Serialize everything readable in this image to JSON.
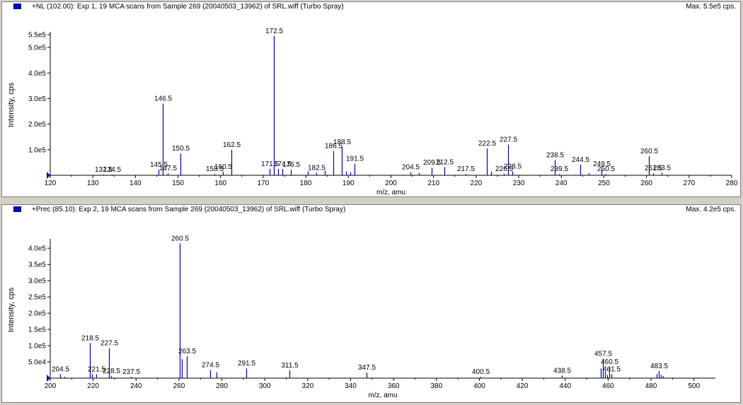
{
  "panels": [
    {
      "title": "+NL (102.00): Exp 1, 19 MCA scans from Sample 269 (20040503_13962) of SRL.wiff (Turbo Spray)",
      "max_label": "Max. 5.5e5 cps."
    },
    {
      "title": "+Prec (85.10): Exp 2, 19 MCA scans from Sample 269 (20040503_13962) of SRL.wiff (Turbo Spray)",
      "max_label": "Max. 4.2e5 cps."
    }
  ],
  "colors": {
    "trace": "#0000b4",
    "axis": "#000000",
    "background": "#ffffff"
  },
  "chart_data": [
    {
      "type": "bar",
      "xlabel": "m/z, amu",
      "ylabel": "Intensity, cps",
      "xlim": [
        120,
        280
      ],
      "ylim": [
        0,
        550000
      ],
      "xticks": [
        "120",
        "130",
        "140",
        "150",
        "160",
        "170",
        "180",
        "190",
        "200",
        "210",
        "220",
        "230",
        "240",
        "250",
        "260",
        "270",
        "280"
      ],
      "yticks": [
        {
          "label": "1.0e5",
          "v": 100000
        },
        {
          "label": "2.0e5",
          "v": 200000
        },
        {
          "label": "3.0e5",
          "v": 300000
        },
        {
          "label": "4.0e5",
          "v": 400000
        },
        {
          "label": "5.0e5",
          "v": 500000
        },
        {
          "label": "5.5e5",
          "v": 550000
        }
      ],
      "peaks": [
        {
          "x": 132.5,
          "y": 3000,
          "label": "132.5"
        },
        {
          "x": 134.5,
          "y": 3000,
          "label": "134.5"
        },
        {
          "x": 145.5,
          "y": 22000,
          "label": "145.5"
        },
        {
          "x": 146.5,
          "y": 280000,
          "label": "146.5"
        },
        {
          "x": 147.5,
          "y": 8000,
          "label": "147.5"
        },
        {
          "x": 150.5,
          "y": 85000,
          "label": "150.5"
        },
        {
          "x": 158.5,
          "y": 5000,
          "label": "158.5"
        },
        {
          "x": 160.5,
          "y": 14000,
          "label": "160.5"
        },
        {
          "x": 162.5,
          "y": 100000,
          "label": "162.5"
        },
        {
          "x": 171.5,
          "y": 25000,
          "label": "171.5"
        },
        {
          "x": 172.5,
          "y": 545000,
          "label": "172.5"
        },
        {
          "x": 173.5,
          "y": 25000
        },
        {
          "x": 174.5,
          "y": 25000,
          "label": "174.5"
        },
        {
          "x": 176.5,
          "y": 22000,
          "label": "176.5"
        },
        {
          "x": 180.5,
          "y": 15000
        },
        {
          "x": 182.5,
          "y": 10000,
          "label": "182.5"
        },
        {
          "x": 184.5,
          "y": 18000
        },
        {
          "x": 186.5,
          "y": 95000,
          "label": "186.5"
        },
        {
          "x": 188.5,
          "y": 110000,
          "label": "188.5"
        },
        {
          "x": 189.5,
          "y": 15000
        },
        {
          "x": 190.5,
          "y": 12000
        },
        {
          "x": 191.5,
          "y": 45000,
          "label": "191.5"
        },
        {
          "x": 204.5,
          "y": 12000,
          "label": "204.5"
        },
        {
          "x": 206.5,
          "y": 10000
        },
        {
          "x": 209.5,
          "y": 30000,
          "label": "209.5"
        },
        {
          "x": 212.5,
          "y": 32000,
          "label": "212.5"
        },
        {
          "x": 217.5,
          "y": 5000,
          "label": "217.5"
        },
        {
          "x": 222.5,
          "y": 105000,
          "label": "222.5"
        },
        {
          "x": 223.5,
          "y": 15000
        },
        {
          "x": 226.5,
          "y": 6000,
          "label": "226.5"
        },
        {
          "x": 227.5,
          "y": 120000,
          "label": "227.5"
        },
        {
          "x": 228.5,
          "y": 15000,
          "label": "228.5"
        },
        {
          "x": 238.5,
          "y": 60000,
          "label": "238.5"
        },
        {
          "x": 239.5,
          "y": 5000,
          "label": "239.5"
        },
        {
          "x": 244.5,
          "y": 42000,
          "label": "244.5"
        },
        {
          "x": 246.5,
          "y": 8000
        },
        {
          "x": 249.5,
          "y": 25000,
          "label": "249.5"
        },
        {
          "x": 250.5,
          "y": 5000,
          "label": "250.5"
        },
        {
          "x": 260.5,
          "y": 75000,
          "label": "260.5"
        },
        {
          "x": 261.5,
          "y": 8000,
          "label": "261.5"
        },
        {
          "x": 263.5,
          "y": 10000,
          "label": "263.5"
        }
      ]
    },
    {
      "type": "bar",
      "xlabel": "m/z, amu",
      "ylabel": "Intensity, cps",
      "xlim": [
        200,
        510
      ],
      "ylim": [
        0,
        420000
      ],
      "xticks": [
        "200",
        "220",
        "240",
        "260",
        "280",
        "300",
        "320",
        "340",
        "360",
        "380",
        "400",
        "420",
        "440",
        "460",
        "480",
        "500"
      ],
      "yticks": [
        {
          "label": "5.0e4",
          "v": 50000
        },
        {
          "label": "1.0e5",
          "v": 100000
        },
        {
          "label": "1.5e5",
          "v": 150000
        },
        {
          "label": "2.0e5",
          "v": 200000
        },
        {
          "label": "2.5e5",
          "v": 250000
        },
        {
          "label": "3.0e5",
          "v": 300000
        },
        {
          "label": "3.5e5",
          "v": 350000
        },
        {
          "label": "4.0e5",
          "v": 400000
        }
      ],
      "peaks": [
        {
          "x": 204.5,
          "y": 12000,
          "label": "204.5"
        },
        {
          "x": 206.5,
          "y": 4000
        },
        {
          "x": 218.5,
          "y": 108000,
          "label": "218.5"
        },
        {
          "x": 219.5,
          "y": 12000
        },
        {
          "x": 221.5,
          "y": 12000,
          "label": "221.5"
        },
        {
          "x": 227.5,
          "y": 92000,
          "label": "227.5"
        },
        {
          "x": 228.5,
          "y": 6000,
          "label": "228.5"
        },
        {
          "x": 237.5,
          "y": 4000,
          "label": "237.5"
        },
        {
          "x": 260.5,
          "y": 415000,
          "label": "260.5"
        },
        {
          "x": 261.5,
          "y": 58000
        },
        {
          "x": 263.5,
          "y": 68000,
          "label": "263.5"
        },
        {
          "x": 274.5,
          "y": 25000,
          "label": "274.5"
        },
        {
          "x": 277.5,
          "y": 18000
        },
        {
          "x": 291.5,
          "y": 30000,
          "label": "291.5"
        },
        {
          "x": 311.5,
          "y": 24000,
          "label": "311.5"
        },
        {
          "x": 347.5,
          "y": 17000,
          "label": "347.5"
        },
        {
          "x": 400.5,
          "y": 4000,
          "label": "400.5"
        },
        {
          "x": 438.5,
          "y": 8000,
          "label": "438.5"
        },
        {
          "x": 456.5,
          "y": 30000
        },
        {
          "x": 457.5,
          "y": 60000,
          "label": "457.5"
        },
        {
          "x": 458.5,
          "y": 20000
        },
        {
          "x": 459.5,
          "y": 10000
        },
        {
          "x": 460.5,
          "y": 35000,
          "label": "460.5"
        },
        {
          "x": 461.5,
          "y": 12000,
          "label": "461.5"
        },
        {
          "x": 482.5,
          "y": 12000
        },
        {
          "x": 483.5,
          "y": 22000,
          "label": "483.5"
        },
        {
          "x": 484.5,
          "y": 10000
        },
        {
          "x": 485.5,
          "y": 6000
        }
      ]
    }
  ]
}
